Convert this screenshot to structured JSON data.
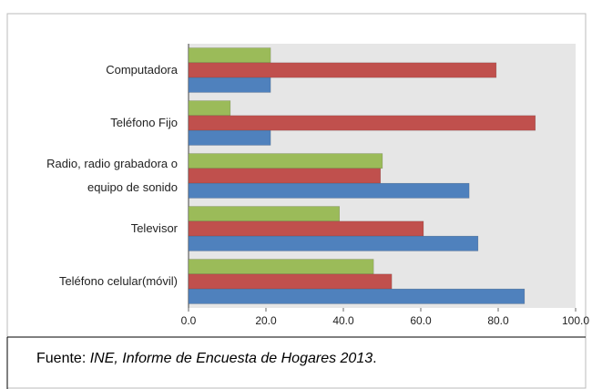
{
  "chart_data": {
    "type": "hbar",
    "categories": [
      "Computadora",
      "Teléfono Fijo",
      "Radio, radio grabadora o equipo de sonido",
      "Televisor",
      "Teléfono celular(móvil)"
    ],
    "series": [
      {
        "color": "#9bbb59",
        "values": [
          21.2,
          10.8,
          50.1,
          39.0,
          47.8
        ]
      },
      {
        "color": "#c0504d",
        "values": [
          79.5,
          89.6,
          49.6,
          60.7,
          52.5
        ]
      },
      {
        "color": "#4f81bd",
        "values": [
          21.2,
          21.2,
          72.5,
          74.8,
          86.8
        ]
      }
    ],
    "xlim": [
      0,
      100
    ],
    "xticks": [
      {
        "value": 0,
        "label": "0.0"
      },
      {
        "value": 20,
        "label": "20.0"
      },
      {
        "value": 40,
        "label": "40.0"
      },
      {
        "value": 60,
        "label": "60.0"
      },
      {
        "value": 80,
        "label": "80.0"
      },
      {
        "value": 100,
        "label": "100.0"
      }
    ],
    "grid": false
  },
  "caption": {
    "label": "Fuente:",
    "source": "INE,  Informe de Encuesta de Hogares 2013",
    "end": "."
  }
}
